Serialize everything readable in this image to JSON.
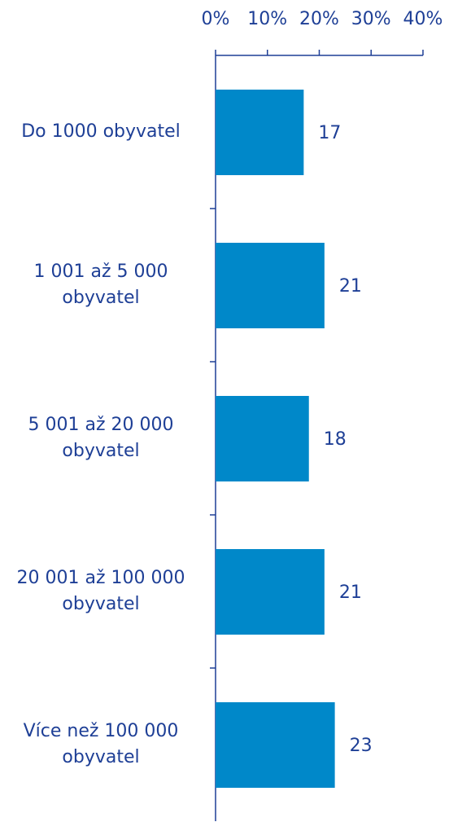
{
  "chart_data": {
    "type": "bar",
    "orientation": "horizontal",
    "categories": [
      "Do 1000 obyvatel",
      "1 001 až 5 000 obyvatel",
      "5 001 až 20 000 obyvatel",
      "20 001 až 100 000 obyvatel",
      "Více než 100 000 obyvatel"
    ],
    "values": [
      17,
      21,
      18,
      21,
      23
    ],
    "color": "#0088c9",
    "xlim": [
      0,
      40
    ],
    "xticks": [
      {
        "value": 0,
        "label": "0%"
      },
      {
        "value": 10,
        "label": "10%"
      },
      {
        "value": 20,
        "label": "20%"
      },
      {
        "value": 30,
        "label": "30%"
      },
      {
        "value": 40,
        "label": "40%"
      }
    ]
  }
}
